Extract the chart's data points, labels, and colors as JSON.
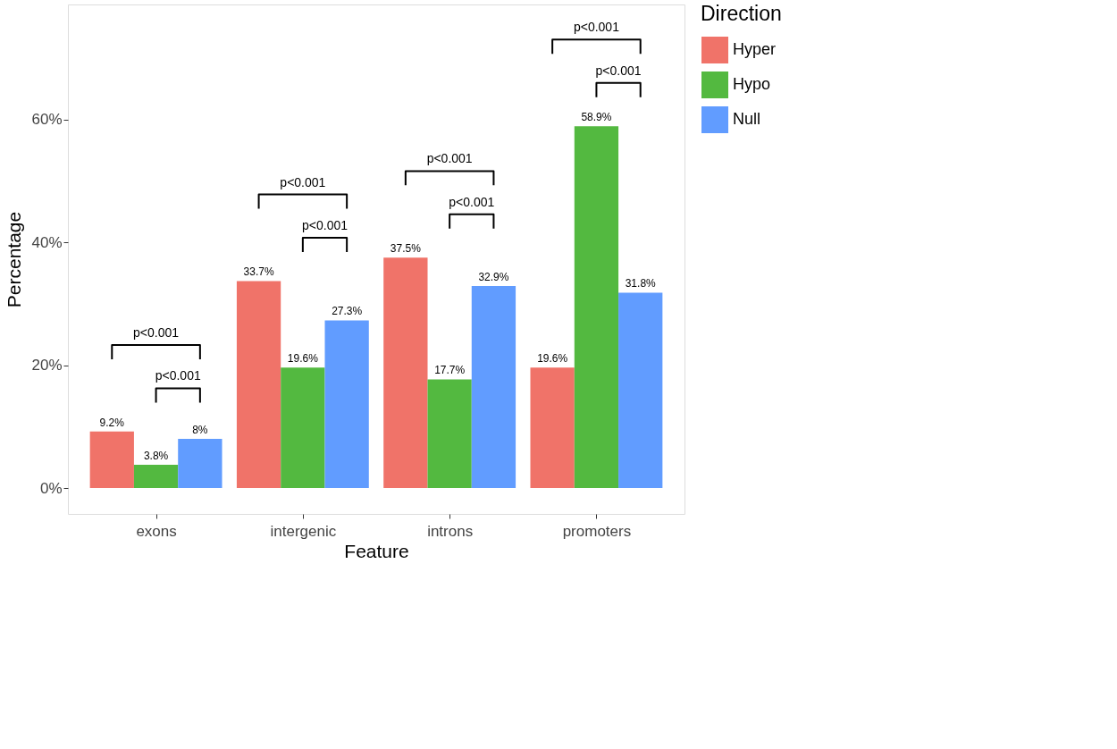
{
  "chart_data": {
    "type": "bar",
    "xlabel": "Feature",
    "ylabel": "Percentage",
    "legend_title": "Direction",
    "legend": "right",
    "grid": false,
    "categories": [
      "exons",
      "intergenic",
      "introns",
      "promoters"
    ],
    "series": [
      {
        "name": "Hyper",
        "color": "#f07369",
        "values": [
          9.2,
          33.7,
          37.5,
          19.6
        ],
        "value_labels": [
          "9.2%",
          "33.7%",
          "37.5%",
          "19.6%"
        ]
      },
      {
        "name": "Hypo",
        "color": "#53b940",
        "values": [
          3.8,
          19.6,
          17.7,
          58.9
        ],
        "value_labels": [
          "3.8%",
          "19.6%",
          "17.7%",
          "58.9%"
        ]
      },
      {
        "name": "Null",
        "color": "#619cff",
        "values": [
          8,
          27.3,
          32.9,
          31.8
        ],
        "value_labels": [
          "8%",
          "27.3%",
          "32.9%",
          "31.8%"
        ]
      }
    ],
    "ylim": [
      -4.2,
      78.7
    ],
    "yticks": [
      {
        "value": 0,
        "label": "0%"
      },
      {
        "value": 20,
        "label": "20%"
      },
      {
        "value": 40,
        "label": "40%"
      },
      {
        "value": 60,
        "label": "60%"
      }
    ],
    "annotations": [
      "p<0.001",
      "p<0.001",
      "p<0.001",
      "p<0.001",
      "p<0.001",
      "p<0.001",
      "p<0.001",
      "p<0.001"
    ]
  }
}
